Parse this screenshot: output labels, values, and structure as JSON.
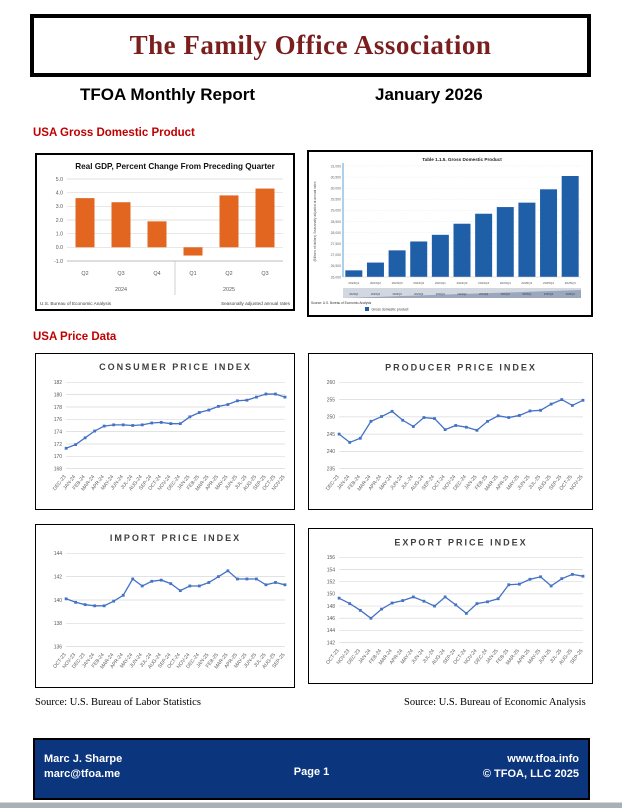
{
  "header": {
    "org_title": "The Family Office Association",
    "report_title": "TFOA Monthly Report",
    "report_date": "January 2026"
  },
  "sections": {
    "gdp_heading": "USA Gross Domestic Product",
    "price_heading": "USA Price Data"
  },
  "sources": {
    "labor_stats": "Source: U.S. Bureau of Labor Statistics",
    "economic_analysis": "Source: U.S. Bureau of Economic Analysis"
  },
  "bottom_bar": {
    "author_name": "Marc J. Sharpe",
    "author_email": "marc@tfoa.me",
    "page_label": "Page 1",
    "website": "www.tfoa.info",
    "copyright": "© TFOA, LLC 2025"
  },
  "colors": {
    "heading_red": "#C00000",
    "title_maroon": "#7B1E1E",
    "gdp_bar_orange": "#E2661F",
    "gdp_bar_blue": "#1F5FA8",
    "line_blue": "#4472C4",
    "footer_navy": "#0B357D"
  },
  "chart_data": [
    {
      "id": "real_gdp",
      "type": "bar",
      "title": "Real GDP, Percent Change From Preceding Quarter",
      "categories": [
        "Q2",
        "Q3",
        "Q4",
        "Q1",
        "Q2",
        "Q3"
      ],
      "year_groups": [
        {
          "label": "2024",
          "span": 3
        },
        {
          "label": "2025",
          "span": 3
        }
      ],
      "values": [
        3.6,
        3.3,
        1.9,
        -0.6,
        3.8,
        4.3
      ],
      "ylim": [
        -1,
        5
      ],
      "y_step": 1,
      "bar_color": "#E2661F",
      "footnote_left": "U.S. Bureau of Economic Analysis",
      "footnote_right": "Seasonally adjusted annual rates"
    },
    {
      "id": "gdp_level",
      "type": "bar",
      "title": "Table 1.1.5. Gross Domestic Product",
      "ylabel": "(Billions of dollars) Seasonally adjusted at annual rates",
      "categories": [
        "2023Q1",
        "2023Q2",
        "2023Q3",
        "2023Q4",
        "2024Q1",
        "2024Q2",
        "2024Q3",
        "2024Q4",
        "2025Q1",
        "2025Q2",
        "2025Q3"
      ],
      "values": [
        26300,
        26650,
        27200,
        27600,
        27900,
        28400,
        28850,
        29150,
        29350,
        29950,
        30550
      ],
      "ylim": [
        26000,
        31000
      ],
      "y_step": 500,
      "bar_color": "#1F5FA8",
      "source": "Source: U.S. Bureau of Economic Analysis",
      "legend": "Gross domestic product"
    },
    {
      "id": "cpi",
      "type": "line",
      "title": "CONSUMER PRICE INDEX",
      "categories": [
        "DEC-23",
        "JAN-24",
        "FEB-24",
        "MAR-24",
        "APR-24",
        "MAY-24",
        "JUN-24",
        "JUL-24",
        "AUG-24",
        "SEP-24",
        "OCT-24",
        "NOV-24",
        "DEC-24",
        "JAN-25",
        "FEB-25",
        "MAR-25",
        "APR-25",
        "MAY-25",
        "JUN-25",
        "JUL-25",
        "AUG-25",
        "SEP-25",
        "OCT-25",
        "NOV-25"
      ],
      "values": [
        171.3,
        171.9,
        173.0,
        174.1,
        174.9,
        175.1,
        175.1,
        175.0,
        175.1,
        175.4,
        175.5,
        175.3,
        175.3,
        176.4,
        177.1,
        177.5,
        178.1,
        178.4,
        179.0,
        179.1,
        179.6,
        180.1,
        180.1,
        179.6
      ],
      "ylim": [
        168,
        182
      ],
      "y_step": 2,
      "line_color": "#4472C4"
    },
    {
      "id": "ppi",
      "type": "line",
      "title": "PRODUCER PRICE INDEX",
      "categories": [
        "DEC-23",
        "JAN-24",
        "FEB-24",
        "MAR-24",
        "APR-24",
        "MAY-24",
        "JUN-24",
        "JUL-24",
        "AUG-24",
        "SEP-24",
        "OCT-24",
        "NOV-24",
        "DEC-24",
        "JAN-25",
        "FEB-25",
        "MAR-25",
        "APR-25",
        "MAY-25",
        "JUN-25",
        "JUL-25",
        "AUG-25",
        "SEP-25",
        "OCT-25",
        "NOV-25"
      ],
      "values": [
        245.0,
        242.6,
        243.8,
        248.7,
        250.1,
        251.6,
        249.0,
        247.2,
        249.8,
        249.5,
        246.3,
        247.5,
        247.0,
        246.1,
        248.7,
        250.3,
        249.8,
        250.4,
        251.7,
        251.9,
        253.7,
        255.0,
        253.3,
        254.8
      ],
      "ylim": [
        235,
        260
      ],
      "y_step": 5,
      "line_color": "#4472C4"
    },
    {
      "id": "import",
      "type": "line",
      "title": "IMPORT PRICE INDEX",
      "categories": [
        "OCT-23",
        "NOV-23",
        "DEC-23",
        "JAN-24",
        "FEB-24",
        "MAR-24",
        "APR-24",
        "MAY-24",
        "JUN-24",
        "JUL-24",
        "AUG-24",
        "SEP-24",
        "OCT-24",
        "NOV-24",
        "DEC-24",
        "JAN-25",
        "FEB-25",
        "MAR-25",
        "APR-25",
        "MAY-25",
        "JUN-25",
        "JUL-25",
        "AUG-25",
        "SEP-25"
      ],
      "values": [
        140.1,
        139.8,
        139.6,
        139.5,
        139.5,
        139.9,
        140.4,
        141.8,
        141.2,
        141.6,
        141.7,
        141.4,
        140.8,
        141.2,
        141.2,
        141.5,
        142.0,
        142.5,
        141.8,
        141.8,
        141.8,
        141.3,
        141.5,
        141.3
      ],
      "ylim": [
        136,
        144
      ],
      "y_step": 2,
      "line_color": "#4472C4"
    },
    {
      "id": "export",
      "type": "line",
      "title": "EXPORT PRICE INDEX",
      "categories": [
        "OCT-23",
        "NOV-23",
        "DEC-23",
        "JAN-24",
        "FEB-24",
        "MAR-24",
        "APR-24",
        "MAY-24",
        "JUN-24",
        "JUL-24",
        "AUG-24",
        "SEP-24",
        "OCT-24",
        "NOV-24",
        "DEC-24",
        "JAN-25",
        "FEB-25",
        "MAR-25",
        "APR-25",
        "MAY-25",
        "JUN-25",
        "JUL-25",
        "AUG-25",
        "SEP-25"
      ],
      "values": [
        149.3,
        148.4,
        147.3,
        146.0,
        147.5,
        148.5,
        148.9,
        149.5,
        148.8,
        148.0,
        149.5,
        148.2,
        146.8,
        148.4,
        148.7,
        149.2,
        151.5,
        151.6,
        152.4,
        152.8,
        151.3,
        152.5,
        153.2,
        152.9
      ],
      "ylim": [
        142,
        156
      ],
      "y_step": 2,
      "line_color": "#4472C4"
    }
  ]
}
